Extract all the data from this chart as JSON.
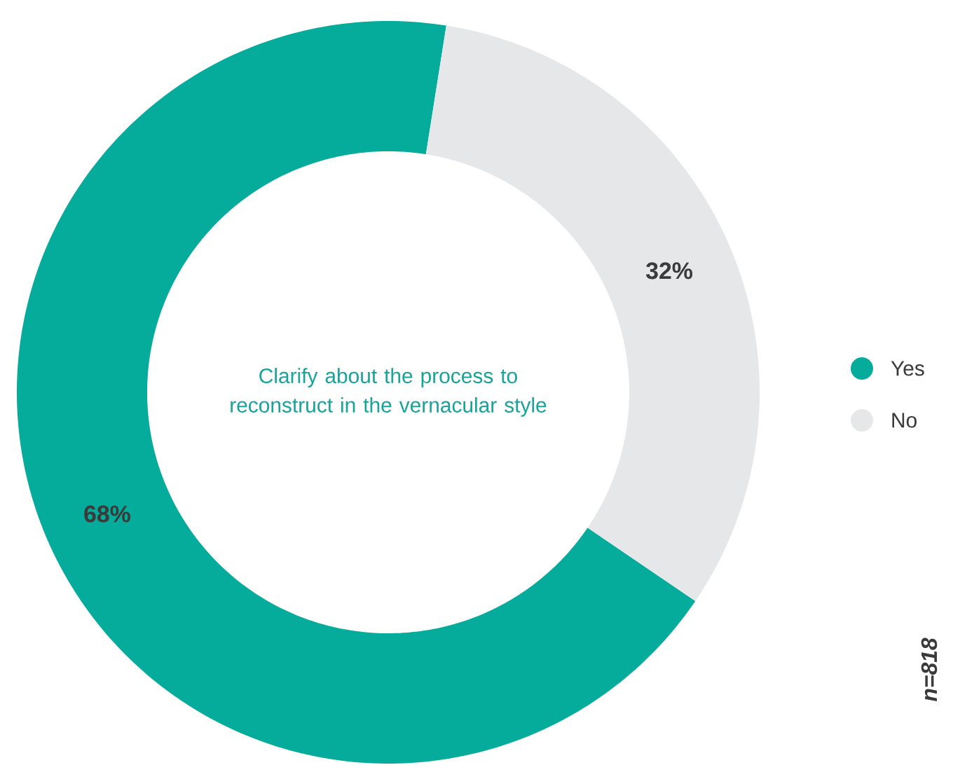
{
  "chart_data": {
    "type": "donut",
    "title": "Clarify about the process to reconstruct in the vernacular style",
    "categories": [
      "Yes",
      "No"
    ],
    "values": [
      68,
      32
    ],
    "colors": [
      "#05ab9b",
      "#e6e7e8"
    ],
    "value_labels": [
      "68%",
      "32%"
    ],
    "legend": "right",
    "annotations": [
      "n=818"
    ]
  }
}
